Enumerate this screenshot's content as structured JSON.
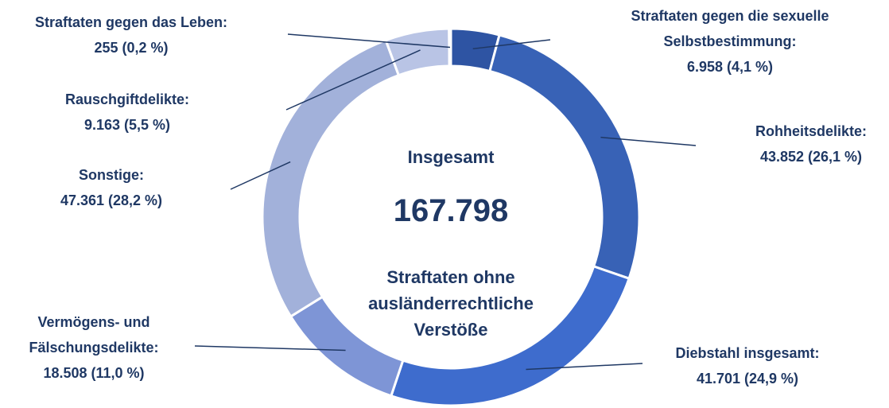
{
  "chart_data": {
    "type": "donut",
    "categories": [
      "Straftaten gegen die sexuelle Selbstbestimmung:",
      "Rohheitsdelikte:",
      "Diebstahl insgesamt:",
      "Vermögens- und Fälschungsdelikte:",
      "Sonstige:",
      "Rauschgiftdelikte:",
      "Straftaten gegen das Leben:"
    ],
    "values": [
      6958,
      43852,
      41701,
      18508,
      47361,
      9163,
      255
    ],
    "value_labels": [
      "6.958 (4,1 %)",
      "43.852 (26,1 %)",
      "41.701 (24,9 %)",
      "18.508 (11,0 %)",
      "47.361 (28,2 %)",
      "9.163 (5,5 %)",
      "255 (0,2 %)"
    ],
    "colors": [
      "#2e54a3",
      "#3862b6",
      "#3e6ccd",
      "#7e95d6",
      "#a2b1da",
      "#b9c4e5",
      "#cdd5ee"
    ],
    "annotations": [
      "Insgesamt",
      "167.798",
      "Straftaten ohne ausländerrechtliche Verstöße"
    ]
  }
}
